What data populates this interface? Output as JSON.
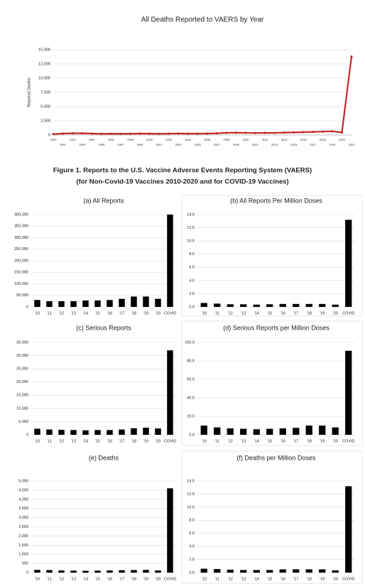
{
  "figure_title": [
    "Figure 1. Reports to the U.S. Vaccine Adverse Events Reporting System (VAERS)",
    "(for Non-Covid-19 Vaccines 2010-2020 and for COVID-19 Vaccines)"
  ],
  "chart_data": [
    {
      "type": "line",
      "title": "All Deaths Reported to VAERS by Year",
      "y_label": "Reported Deaths",
      "color": "#c62828",
      "grid": true,
      "x": [
        1990,
        1991,
        1992,
        1993,
        1994,
        1995,
        1996,
        1997,
        1998,
        1999,
        2000,
        2001,
        2002,
        2003,
        2004,
        2005,
        2006,
        2007,
        2008,
        2009,
        2010,
        2011,
        2012,
        2013,
        2014,
        2015,
        2016,
        2017,
        2018,
        2019,
        2020,
        2021
      ],
      "values": [
        150,
        250,
        300,
        300,
        250,
        200,
        220,
        200,
        220,
        250,
        230,
        200,
        230,
        260,
        230,
        230,
        250,
        300,
        380,
        400,
        380,
        350,
        380,
        370,
        420,
        450,
        500,
        550,
        600,
        650,
        450,
        13800
      ],
      "xlim": [
        1990,
        2021
      ],
      "ylim": [
        0,
        15000
      ],
      "yticks": [
        0,
        {
          "value": 2500,
          "label": "2,500"
        },
        {
          "value": 5000,
          "label": "5,000"
        },
        {
          "value": 7500,
          "label": "7,500"
        },
        {
          "value": 10000,
          "label": "10,000"
        },
        {
          "value": 12500,
          "label": "12,500"
        },
        {
          "value": 15000,
          "label": "15,000"
        }
      ]
    },
    {
      "type": "bar",
      "title": "(a) All Reports",
      "color": "#000000",
      "grid": true,
      "categories": [
        "'10",
        "'11",
        "'12",
        "'13",
        "'14",
        "'15",
        "'16",
        "'17",
        "'18",
        "'19",
        "'20",
        "COVID"
      ],
      "values": [
        30000,
        25000,
        25000,
        25000,
        28000,
        28000,
        30000,
        35000,
        45000,
        45000,
        35000,
        400000
      ],
      "ylim": [
        0,
        400000
      ],
      "yticks": [
        0,
        {
          "value": 50000,
          "label": "50,000"
        },
        {
          "value": 100000,
          "label": "100,000"
        },
        {
          "value": 150000,
          "label": "150,000"
        },
        {
          "value": 200000,
          "label": "200,000"
        },
        {
          "value": 250000,
          "label": "250,000"
        },
        {
          "value": 300000,
          "label": "300,000"
        },
        {
          "value": 350000,
          "label": "350,000"
        },
        {
          "value": 400000,
          "label": "400,000"
        }
      ]
    },
    {
      "type": "bar",
      "title": "(b) All Reports Per Million Doses",
      "color": "#000000",
      "grid": true,
      "categories": [
        "'10",
        "'11",
        "'12",
        "'13",
        "'14",
        "'15",
        "'16",
        "'17",
        "'18",
        "'19",
        "'20",
        "COVID"
      ],
      "values": [
        0.6,
        0.5,
        0.4,
        0.4,
        0.35,
        0.4,
        0.45,
        0.45,
        0.45,
        0.45,
        0.35,
        13.2
      ],
      "ylim": [
        0,
        14
      ],
      "yticks": [
        {
          "value": 0,
          "label": "0.0"
        },
        {
          "value": 2,
          "label": "2.0"
        },
        {
          "value": 4,
          "label": "4.0"
        },
        {
          "value": 6,
          "label": "6.0"
        },
        {
          "value": 8,
          "label": "8.0"
        },
        {
          "value": 10,
          "label": "10.0"
        },
        {
          "value": 12,
          "label": "12.0"
        },
        {
          "value": 14,
          "label": "14.0"
        }
      ]
    },
    {
      "type": "bar",
      "title": "(c) Serious Reports",
      "color": "#000000",
      "grid": true,
      "categories": [
        "'10",
        "'11",
        "'12",
        "'13",
        "'14",
        "'15",
        "'16",
        "'17",
        "'18",
        "'19",
        "'20",
        "COVID"
      ],
      "values": [
        2300,
        2000,
        1900,
        1800,
        1700,
        1800,
        1800,
        2000,
        2500,
        2700,
        2400,
        32000
      ],
      "ylim": [
        0,
        35000
      ],
      "yticks": [
        0,
        {
          "value": 5000,
          "label": "5,000"
        },
        {
          "value": 10000,
          "label": "10,000"
        },
        {
          "value": 15000,
          "label": "15,000"
        },
        {
          "value": 20000,
          "label": "20,000"
        },
        {
          "value": 25000,
          "label": "25,000"
        },
        {
          "value": 30000,
          "label": "30,000"
        },
        {
          "value": 35000,
          "label": "35,000"
        }
      ]
    },
    {
      "type": "bar",
      "title": "(d) Serious Reports per Million Doses",
      "color": "#000000",
      "grid": true,
      "categories": [
        "'10",
        "'11",
        "'12",
        "'13",
        "'14",
        "'15",
        "'16",
        "'17",
        "'18",
        "'19",
        "'20",
        "COVID"
      ],
      "values": [
        10,
        8,
        7,
        6.5,
        6,
        6.5,
        7,
        7.5,
        10,
        10,
        8,
        91
      ],
      "ylim": [
        0,
        100
      ],
      "yticks": [
        {
          "value": 0,
          "label": "0.0"
        },
        {
          "value": 20,
          "label": "20.0"
        },
        {
          "value": 40,
          "label": "40.0"
        },
        {
          "value": 60,
          "label": "60.0"
        },
        {
          "value": 80,
          "label": "80.0"
        },
        {
          "value": 100,
          "label": "100.0"
        }
      ]
    },
    {
      "type": "bar",
      "title": "(e) Deaths",
      "color": "#000000",
      "grid": true,
      "categories": [
        "'10",
        "'11",
        "'12",
        "'13",
        "'14",
        "'15",
        "'16",
        "'17",
        "'18",
        "'19",
        "'20",
        "COVID"
      ],
      "values": [
        150,
        140,
        120,
        110,
        100,
        110,
        120,
        130,
        140,
        150,
        120,
        4600
      ],
      "ylim": [
        0,
        5000
      ],
      "yticks": [
        0,
        500,
        {
          "value": 1000,
          "label": "1,000"
        },
        {
          "value": 1500,
          "label": "1,500"
        },
        {
          "value": 2000,
          "label": "2,000"
        },
        {
          "value": 2500,
          "label": "2,500"
        },
        {
          "value": 3000,
          "label": "3,000"
        },
        {
          "value": 3500,
          "label": "3,500"
        },
        {
          "value": 4000,
          "label": "4,000"
        },
        {
          "value": 4500,
          "label": "4,500"
        },
        {
          "value": 5000,
          "label": "5,000"
        }
      ]
    },
    {
      "type": "bar",
      "title": "(f) Deaths per Million Doses",
      "color": "#000000",
      "grid": true,
      "categories": [
        "'10",
        "'11",
        "'12",
        "'13",
        "'14",
        "'15",
        "'16",
        "'17",
        "'18",
        "'19",
        "'20",
        "COVID"
      ],
      "values": [
        0.6,
        0.55,
        0.45,
        0.4,
        0.4,
        0.4,
        0.5,
        0.5,
        0.5,
        0.5,
        0.35,
        13.2
      ],
      "ylim": [
        0,
        14
      ],
      "yticks": [
        {
          "value": 0,
          "label": "0.0"
        },
        {
          "value": 2,
          "label": "2.0"
        },
        {
          "value": 4,
          "label": "4.0"
        },
        {
          "value": 6,
          "label": "6.0"
        },
        {
          "value": 8,
          "label": "8.0"
        },
        {
          "value": 10,
          "label": "10.0"
        },
        {
          "value": 12,
          "label": "12.0"
        },
        {
          "value": 14,
          "label": "14.0"
        }
      ]
    }
  ]
}
